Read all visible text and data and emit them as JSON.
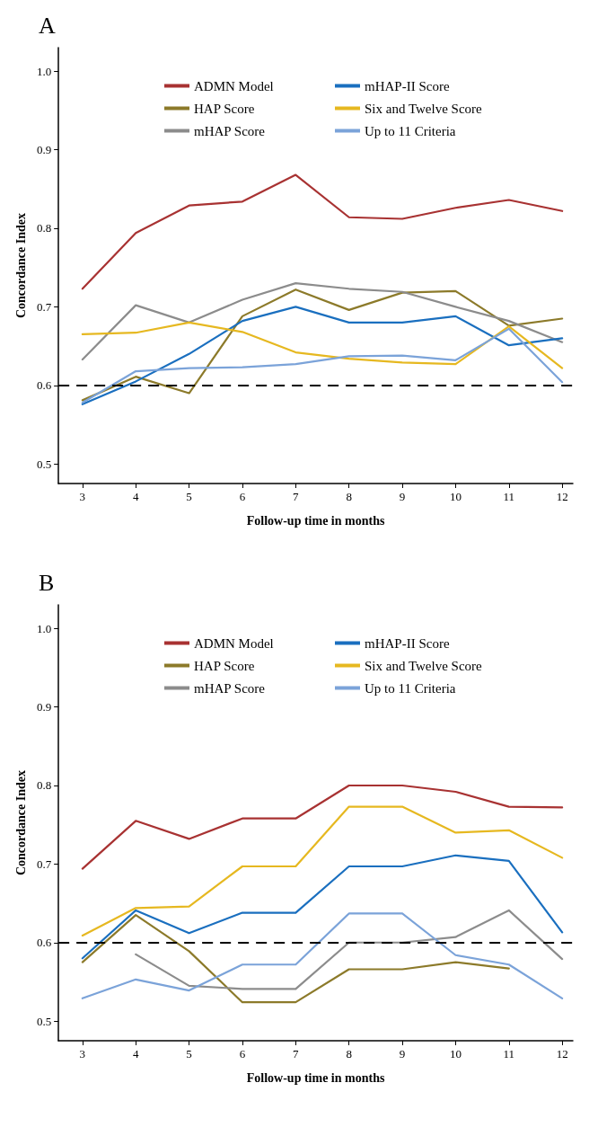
{
  "chart_data": [
    {
      "type": "line",
      "title": "A",
      "xlabel": "Follow-up time in months",
      "ylabel": "Concordance Index",
      "x": [
        3,
        4,
        5,
        6,
        7,
        8,
        9,
        10,
        11,
        12
      ],
      "xlim": [
        2.55,
        12.2
      ],
      "xticks": [
        3,
        4,
        5,
        6,
        7,
        8,
        9,
        10,
        11,
        12
      ],
      "ylim": [
        0.475,
        1.03
      ],
      "yticks": [
        0.5,
        0.6,
        0.7,
        0.8,
        0.9,
        {
          "value": 1,
          "label": "1.0"
        }
      ],
      "grid": false,
      "legend": "top",
      "marker": "none",
      "line_style": "solid",
      "ref_lines": [
        {
          "axis": "y",
          "value": 0.6,
          "color": "#000000",
          "line_style": "dashed"
        }
      ],
      "series": [
        {
          "name": "ADMN Model",
          "color": "#a83232",
          "values": [
            0.723,
            0.794,
            0.829,
            0.834,
            0.868,
            0.814,
            0.812,
            0.826,
            0.836,
            0.822
          ]
        },
        {
          "name": "HAP Score",
          "color": "#8c7a2a",
          "values": [
            0.581,
            0.611,
            0.59,
            0.688,
            0.722,
            0.696,
            0.718,
            0.72,
            0.676,
            0.685
          ]
        },
        {
          "name": "mHAP Score",
          "color": "#8c8c8c",
          "values": [
            0.633,
            0.702,
            0.68,
            0.709,
            0.73,
            0.723,
            0.719,
            0.7,
            0.682,
            0.655
          ]
        },
        {
          "name": "mHAP-II Score",
          "color": "#1a6fbf",
          "values": [
            0.576,
            0.605,
            0.64,
            0.682,
            0.7,
            0.68,
            0.68,
            0.688,
            0.651,
            0.66
          ]
        },
        {
          "name": "Six and Twelve Score",
          "color": "#e6b820",
          "values": [
            0.665,
            0.667,
            0.68,
            0.668,
            0.642,
            0.634,
            0.629,
            0.627,
            0.675,
            0.622
          ]
        },
        {
          "name": "Up to 11 Criteria",
          "color": "#7ba3d9",
          "values": [
            0.578,
            0.618,
            0.622,
            0.623,
            0.627,
            0.637,
            0.638,
            0.632,
            0.672,
            0.604
          ]
        }
      ]
    },
    {
      "type": "line",
      "title": "B",
      "xlabel": "Follow-up time in months",
      "ylabel": "Concordance Index",
      "x": [
        3,
        4,
        5,
        6,
        7,
        8,
        9,
        10,
        11,
        12
      ],
      "xlim": [
        2.55,
        12.2
      ],
      "xticks": [
        3,
        4,
        5,
        6,
        7,
        8,
        9,
        10,
        11,
        12
      ],
      "ylim": [
        0.475,
        1.03
      ],
      "yticks": [
        0.5,
        0.6,
        0.7,
        0.8,
        0.9,
        {
          "value": 1,
          "label": "1.0"
        }
      ],
      "grid": false,
      "legend": "top",
      "marker": "none",
      "line_style": "solid",
      "ref_lines": [
        {
          "axis": "y",
          "value": 0.6,
          "color": "#000000",
          "line_style": "dashed"
        }
      ],
      "series": [
        {
          "name": "ADMN Model",
          "color": "#a83232",
          "values": [
            0.694,
            0.755,
            0.732,
            0.758,
            0.758,
            0.8,
            0.8,
            0.792,
            0.773,
            0.772
          ]
        },
        {
          "name": "HAP Score",
          "color": "#8c7a2a",
          "values": [
            0.575,
            0.635,
            0.589,
            0.524,
            0.524,
            0.566,
            0.566,
            0.575,
            0.567,
            null
          ]
        },
        {
          "name": "mHAP Score",
          "color": "#8c8c8c",
          "values": [
            null,
            0.585,
            0.545,
            0.541,
            0.541,
            0.6,
            0.6,
            0.607,
            0.641,
            0.579
          ]
        },
        {
          "name": "mHAP-II Score",
          "color": "#1a6fbf",
          "values": [
            0.58,
            0.641,
            0.612,
            0.638,
            0.638,
            0.697,
            0.697,
            0.711,
            0.704,
            0.613
          ]
        },
        {
          "name": "Six and Twelve Score",
          "color": "#e6b820",
          "values": [
            0.609,
            0.644,
            0.646,
            0.697,
            0.697,
            0.773,
            0.773,
            0.74,
            0.743,
            0.708
          ]
        },
        {
          "name": "Up to 11 Criteria",
          "color": "#7ba3d9",
          "values": [
            0.529,
            0.553,
            0.539,
            0.572,
            0.572,
            0.637,
            0.637,
            0.584,
            0.572,
            0.529
          ]
        }
      ]
    }
  ]
}
